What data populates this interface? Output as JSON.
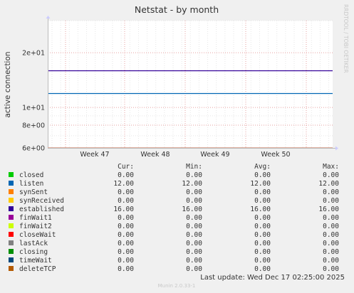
{
  "chart_data": {
    "type": "line",
    "title": "Netstat - by month",
    "ylabel": "active connection",
    "xlabel": "",
    "side_label": "RRDTOOL / TOBI OETIKER",
    "scale": "log",
    "ylim": [
      6,
      30
    ],
    "grid": true,
    "y_ticks": [
      {
        "value": 6,
        "label": "6e+00"
      },
      {
        "value": 8,
        "label": "8e+00"
      },
      {
        "value": 10,
        "label": "1e+01"
      },
      {
        "value": 20,
        "label": "2e+01"
      }
    ],
    "x_ticks": [
      "Week 47",
      "Week 48",
      "Week 49",
      "Week 50"
    ],
    "legend_headers": [
      "Cur:",
      "Min:",
      "Avg:",
      "Max:"
    ],
    "series": [
      {
        "name": "closed",
        "color": "#00cc00",
        "cur": "0.00",
        "min": "0.00",
        "avg": "0.00",
        "max": "0.00",
        "value": 0
      },
      {
        "name": "listen",
        "color": "#0066b3",
        "cur": "12.00",
        "min": "12.00",
        "avg": "12.00",
        "max": "12.00",
        "value": 12
      },
      {
        "name": "synSent",
        "color": "#ff8000",
        "cur": "0.00",
        "min": "0.00",
        "avg": "0.00",
        "max": "0.00",
        "value": 0
      },
      {
        "name": "synReceived",
        "color": "#ffcc00",
        "cur": "0.00",
        "min": "0.00",
        "avg": "0.00",
        "max": "0.00",
        "value": 0
      },
      {
        "name": "established",
        "color": "#330099",
        "cur": "16.00",
        "min": "16.00",
        "avg": "16.00",
        "max": "16.00",
        "value": 16
      },
      {
        "name": "finWait1",
        "color": "#990099",
        "cur": "0.00",
        "min": "0.00",
        "avg": "0.00",
        "max": "0.00",
        "value": 0
      },
      {
        "name": "finWait2",
        "color": "#ccff00",
        "cur": "0.00",
        "min": "0.00",
        "avg": "0.00",
        "max": "0.00",
        "value": 0
      },
      {
        "name": "closeWait",
        "color": "#ff0000",
        "cur": "0.00",
        "min": "0.00",
        "avg": "0.00",
        "max": "0.00",
        "value": 0
      },
      {
        "name": "lastAck",
        "color": "#808080",
        "cur": "0.00",
        "min": "0.00",
        "avg": "0.00",
        "max": "0.00",
        "value": 0
      },
      {
        "name": "closing",
        "color": "#008f00",
        "cur": "0.00",
        "min": "0.00",
        "avg": "0.00",
        "max": "0.00",
        "value": 0
      },
      {
        "name": "timeWait",
        "color": "#00487d",
        "cur": "0.00",
        "min": "0.00",
        "avg": "0.00",
        "max": "0.00",
        "value": 0
      },
      {
        "name": "deleteTCP",
        "color": "#b35a00",
        "cur": "0.00",
        "min": "0.00",
        "avg": "0.00",
        "max": "0.00",
        "value": 0
      }
    ],
    "last_update": "Last update: Wed Dec 17 02:25:00 2025",
    "footer": "Munin 2.0.33-1"
  }
}
